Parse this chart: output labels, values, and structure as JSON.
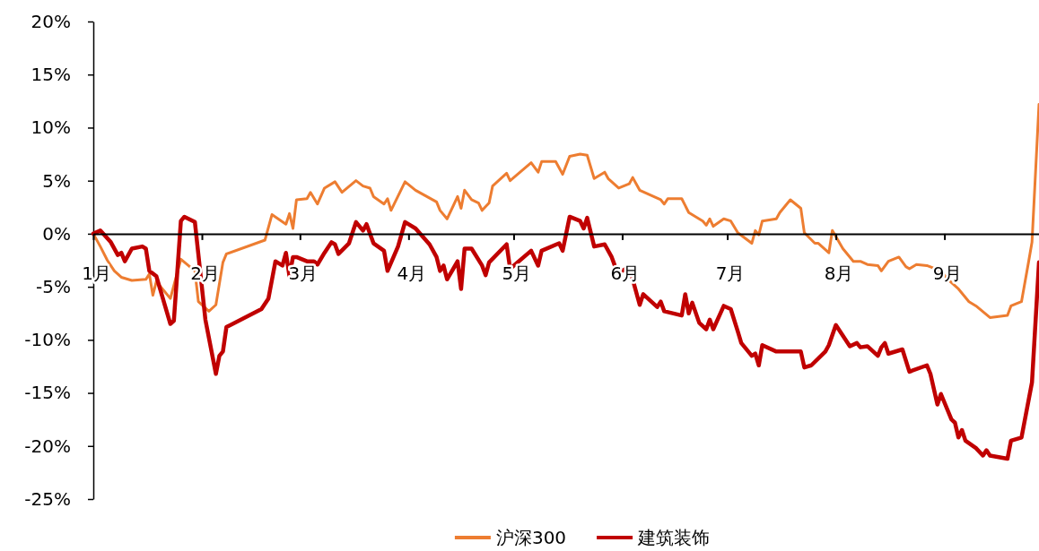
{
  "chart_data": {
    "type": "line",
    "xlim": [
      "--01-01",
      "--09-28"
    ],
    "xticks": [
      {
        "value": "--01-01",
        "label": "1月"
      },
      {
        "value": "--02-01",
        "label": "2月"
      },
      {
        "value": "--03-01",
        "label": "3月"
      },
      {
        "value": "--04-01",
        "label": "4月"
      },
      {
        "value": "--05-01",
        "label": "5月"
      },
      {
        "value": "--06-01",
        "label": "6月"
      },
      {
        "value": "--07-01",
        "label": "7月"
      },
      {
        "value": "--08-01",
        "label": "8月"
      },
      {
        "value": "--09-01",
        "label": "9月"
      }
    ],
    "ylim": [
      -25,
      20
    ],
    "yticks": [
      {
        "value": 20,
        "label": "20%"
      },
      {
        "value": 15,
        "label": "15%"
      },
      {
        "value": 10,
        "label": "10%"
      },
      {
        "value": 5,
        "label": "5%"
      },
      {
        "value": 0,
        "label": "0%"
      },
      {
        "value": -5,
        "label": "-5%"
      },
      {
        "value": -10,
        "label": "-10%"
      },
      {
        "value": -15,
        "label": "-15%"
      },
      {
        "value": -20,
        "label": "-20%"
      },
      {
        "value": -25,
        "label": "-25%"
      }
    ],
    "grid": false,
    "legend": "bottom",
    "line_style": "solid",
    "marker": "none",
    "series": [
      {
        "name": "沪深300",
        "color": "#ed7d31",
        "x": [
          "--01-01",
          "--01-03",
          "--01-05",
          "--01-07",
          "--01-09",
          "--01-12",
          "--01-16",
          "--01-17",
          "--01-18",
          "--01-19",
          "--01-23",
          "--01-26",
          "--01-30",
          "--01-31",
          "--02-03",
          "--02-05",
          "--02-07",
          "--02-08",
          "--02-19",
          "--02-21",
          "--02-25",
          "--02-26",
          "--02-27",
          "--02-28",
          "--03-03",
          "--03-04",
          "--03-06",
          "--03-08",
          "--03-11",
          "--03-13",
          "--03-17",
          "--03-19",
          "--03-21",
          "--03-22",
          "--03-25",
          "--03-26",
          "--03-27",
          "--03-31",
          "--04-03",
          "--04-09",
          "--04-10",
          "--04-12",
          "--04-15",
          "--04-16",
          "--04-17",
          "--04-19",
          "--04-21",
          "--04-22",
          "--04-24",
          "--04-25",
          "--04-29",
          "--04-30",
          "--05-06",
          "--05-08",
          "--05-09",
          "--05-13",
          "--05-15",
          "--05-17",
          "--05-20",
          "--05-22",
          "--05-24",
          "--05-27",
          "--05-28",
          "--05-31",
          "--06-03",
          "--06-04",
          "--06-05",
          "--06-06",
          "--06-12",
          "--06-13",
          "--06-14",
          "--06-18",
          "--06-20",
          "--06-24",
          "--06-25",
          "--06-26",
          "--06-27",
          "--06-30",
          "--07-02",
          "--07-04",
          "--07-08",
          "--07-09",
          "--07-10",
          "--07-11",
          "--07-15",
          "--07-16",
          "--07-19",
          "--07-22",
          "--07-23",
          "--07-26",
          "--07-27",
          "--07-30",
          "--07-31",
          "--08-03",
          "--08-06",
          "--08-08",
          "--08-10",
          "--08-13",
          "--08-14",
          "--08-16",
          "--08-19",
          "--08-21",
          "--08-22",
          "--08-24",
          "--08-27",
          "--08-31",
          "--09-02",
          "--09-05",
          "--09-08",
          "--09-10",
          "--09-14",
          "--09-19",
          "--09-20",
          "--09-23",
          "--09-25",
          "--09-26",
          "--09-28"
        ],
        "values": [
          0,
          -1.2,
          -2.5,
          -3.5,
          -4.1,
          -4.4,
          -4.3,
          -3.8,
          -5.8,
          -4.5,
          -6.1,
          -2.4,
          -3.5,
          -6.4,
          -7.3,
          -6.7,
          -2.7,
          -1.9,
          -0.6,
          1.8,
          0.9,
          1.9,
          0.5,
          3.2,
          3.3,
          3.9,
          2.8,
          4.3,
          4.9,
          3.9,
          5.0,
          4.5,
          4.3,
          3.5,
          2.8,
          3.3,
          2.2,
          4.9,
          4.1,
          3.0,
          2.2,
          1.4,
          3.5,
          2.4,
          4.1,
          3.2,
          2.9,
          2.2,
          2.9,
          4.5,
          5.7,
          5.0,
          6.7,
          5.8,
          6.8,
          6.8,
          5.6,
          7.3,
          7.5,
          7.4,
          5.2,
          5.8,
          5.2,
          4.3,
          4.7,
          5.3,
          4.7,
          4.1,
          3.2,
          2.8,
          3.3,
          3.3,
          2.0,
          1.2,
          0.8,
          1.4,
          0.7,
          1.4,
          1.2,
          0.1,
          -0.9,
          0.3,
          -0.1,
          1.2,
          1.4,
          2.0,
          3.2,
          2.4,
          0.1,
          -0.9,
          -0.9,
          -1.8,
          0.3,
          -1.4,
          -2.6,
          -2.6,
          -2.9,
          -3.0,
          -3.5,
          -2.6,
          -2.2,
          -3.1,
          -3.3,
          -2.9,
          -3.0,
          -3.5,
          -4.3,
          -5.2,
          -6.4,
          -6.8,
          -7.9,
          -7.7,
          -6.8,
          -6.4,
          -2.7,
          -0.8,
          12.2
        ]
      },
      {
        "name": "建筑装饰",
        "color": "#c00000",
        "x": [
          "--01-01",
          "--01-03",
          "--01-06",
          "--01-08",
          "--01-09",
          "--01-10",
          "--01-12",
          "--01-15",
          "--01-16",
          "--01-17",
          "--01-19",
          "--01-23",
          "--01-24",
          "--01-26",
          "--01-27",
          "--01-30",
          "--02-02",
          "--02-05",
          "--02-06",
          "--02-07",
          "--02-08",
          "--02-18",
          "--02-20",
          "--02-22",
          "--02-24",
          "--02-25",
          "--02-26",
          "--02-27",
          "--02-28",
          "--03-03",
          "--03-05",
          "--03-06",
          "--03-08",
          "--03-10",
          "--03-11",
          "--03-12",
          "--03-15",
          "--03-17",
          "--03-19",
          "--03-20",
          "--03-22",
          "--03-25",
          "--03-26",
          "--03-29",
          "--03-31",
          "--04-03",
          "--04-07",
          "--04-09",
          "--04-10",
          "--04-11",
          "--04-12",
          "--04-15",
          "--04-16",
          "--04-17",
          "--04-19",
          "--04-22",
          "--04-23",
          "--04-24",
          "--04-29",
          "--04-30",
          "--05-06",
          "--05-08",
          "--05-09",
          "--05-14",
          "--05-15",
          "--05-17",
          "--05-20",
          "--05-21",
          "--05-22",
          "--05-24",
          "--05-27",
          "--05-29",
          "--05-30",
          "--06-01",
          "--06-03",
          "--06-04",
          "--06-06",
          "--06-07",
          "--06-11",
          "--06-12",
          "--06-13",
          "--06-18",
          "--06-19",
          "--06-20",
          "--06-21",
          "--06-23",
          "--06-25",
          "--06-26",
          "--06-27",
          "--06-30",
          "--07-02",
          "--07-04",
          "--07-05",
          "--07-08",
          "--07-09",
          "--07-10",
          "--07-11",
          "--07-15",
          "--07-22",
          "--07-23",
          "--07-25",
          "--07-29",
          "--07-30",
          "--08-01",
          "--08-05",
          "--08-07",
          "--08-08",
          "--08-10",
          "--08-13",
          "--08-14",
          "--08-15",
          "--08-16",
          "--08-20",
          "--08-22",
          "--08-27",
          "--08-28",
          "--08-30",
          "--08-31",
          "--09-03",
          "--09-04",
          "--09-05",
          "--09-06",
          "--09-07",
          "--09-10",
          "--09-12",
          "--09-13",
          "--09-14",
          "--09-19",
          "--09-20",
          "--09-23",
          "--09-26",
          "--09-28"
        ],
        "values": [
          0,
          0.3,
          -0.8,
          -2.0,
          -1.8,
          -2.6,
          -1.4,
          -1.2,
          -1.4,
          -3.5,
          -4.0,
          -8.5,
          -8.2,
          1.2,
          1.6,
          1.1,
          -8.1,
          -13.2,
          -11.5,
          -11.1,
          -8.8,
          -7.1,
          -6.1,
          -2.6,
          -3.0,
          -1.8,
          -4.0,
          -2.2,
          -2.2,
          -2.6,
          -2.6,
          -2.9,
          -1.8,
          -0.8,
          -1.0,
          -1.9,
          -0.9,
          1.1,
          0.3,
          0.9,
          -0.9,
          -1.6,
          -3.5,
          -1.2,
          1.1,
          0.5,
          -1.0,
          -2.2,
          -3.5,
          -3.0,
          -4.3,
          -2.6,
          -5.2,
          -1.4,
          -1.4,
          -3.0,
          -3.9,
          -2.7,
          -1.0,
          -3.3,
          -1.6,
          -3.0,
          -1.6,
          -0.9,
          -1.6,
          1.6,
          1.2,
          0.5,
          1.5,
          -1.2,
          -1.0,
          -2.2,
          -3.1,
          -3.5,
          -3.1,
          -4.3,
          -6.7,
          -5.7,
          -6.9,
          -6.4,
          -7.3,
          -7.7,
          -5.7,
          -7.5,
          -6.5,
          -8.4,
          -9.0,
          -8.1,
          -9.0,
          -6.8,
          -7.1,
          -9.2,
          -10.3,
          -11.5,
          -11.3,
          -12.4,
          -10.5,
          -11.1,
          -11.1,
          -12.6,
          -12.4,
          -11.1,
          -10.5,
          -8.6,
          -10.6,
          -10.3,
          -10.7,
          -10.6,
          -11.5,
          -10.7,
          -10.3,
          -11.3,
          -10.9,
          -13.0,
          -12.4,
          -13.2,
          -16.1,
          -15.1,
          -17.5,
          -17.8,
          -19.2,
          -18.5,
          -19.5,
          -20.2,
          -20.9,
          -20.4,
          -20.9,
          -21.2,
          -19.5,
          -19.2,
          -14.0,
          -2.7
        ]
      }
    ]
  }
}
